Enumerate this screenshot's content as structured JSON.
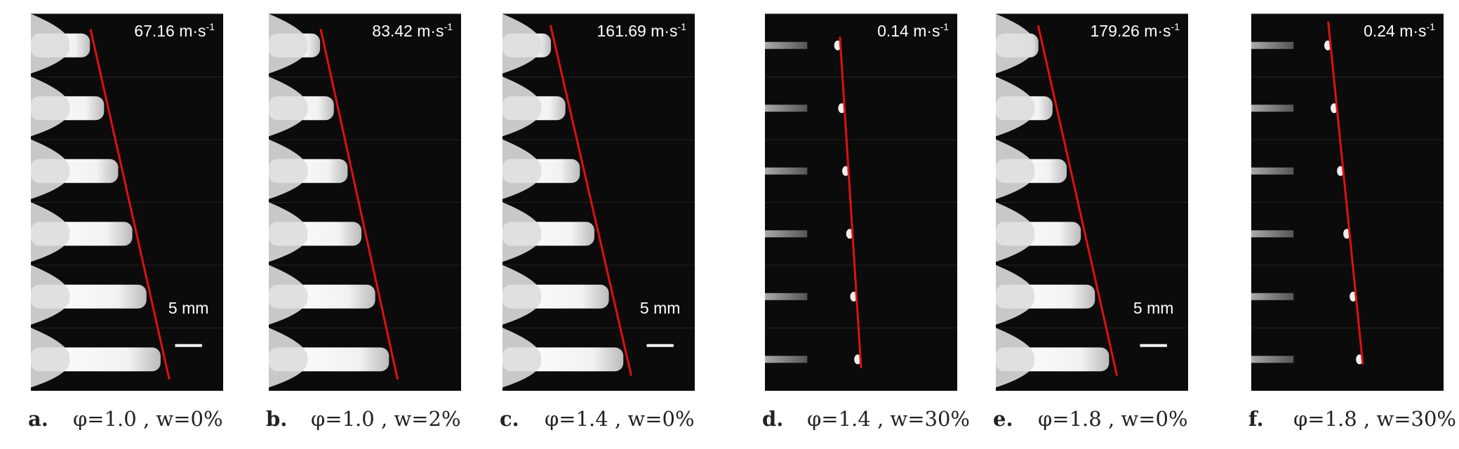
{
  "panels": [
    {
      "label": "a.",
      "caption": "φ=1.0 , w=0%",
      "speed": "67.16 m·s",
      "speed_exponent": "-1",
      "scale": "5 mm"
    },
    {
      "label": "b.",
      "caption": "φ=1.0 , w=2%",
      "speed": "83.42 m·s",
      "speed_exponent": "-1"
    },
    {
      "label": "c.",
      "caption": "φ=1.4 , w=0%",
      "speed": "161.69 m·s",
      "speed_exponent": "-1",
      "scale": "5 mm"
    },
    {
      "label": "d.",
      "caption": "φ=1.4 , w=30%",
      "speed": "0.14 m·s",
      "speed_exponent": "-1"
    },
    {
      "label": "e.",
      "caption": "φ=1.8 , w=0%",
      "speed": "179.26 m·s",
      "speed_exponent": "-1",
      "scale": "5 mm"
    },
    {
      "label": "f.",
      "caption": "φ=1.8 , w=30%",
      "speed": "0.24 m·s",
      "speed_exponent": "-1"
    }
  ]
}
